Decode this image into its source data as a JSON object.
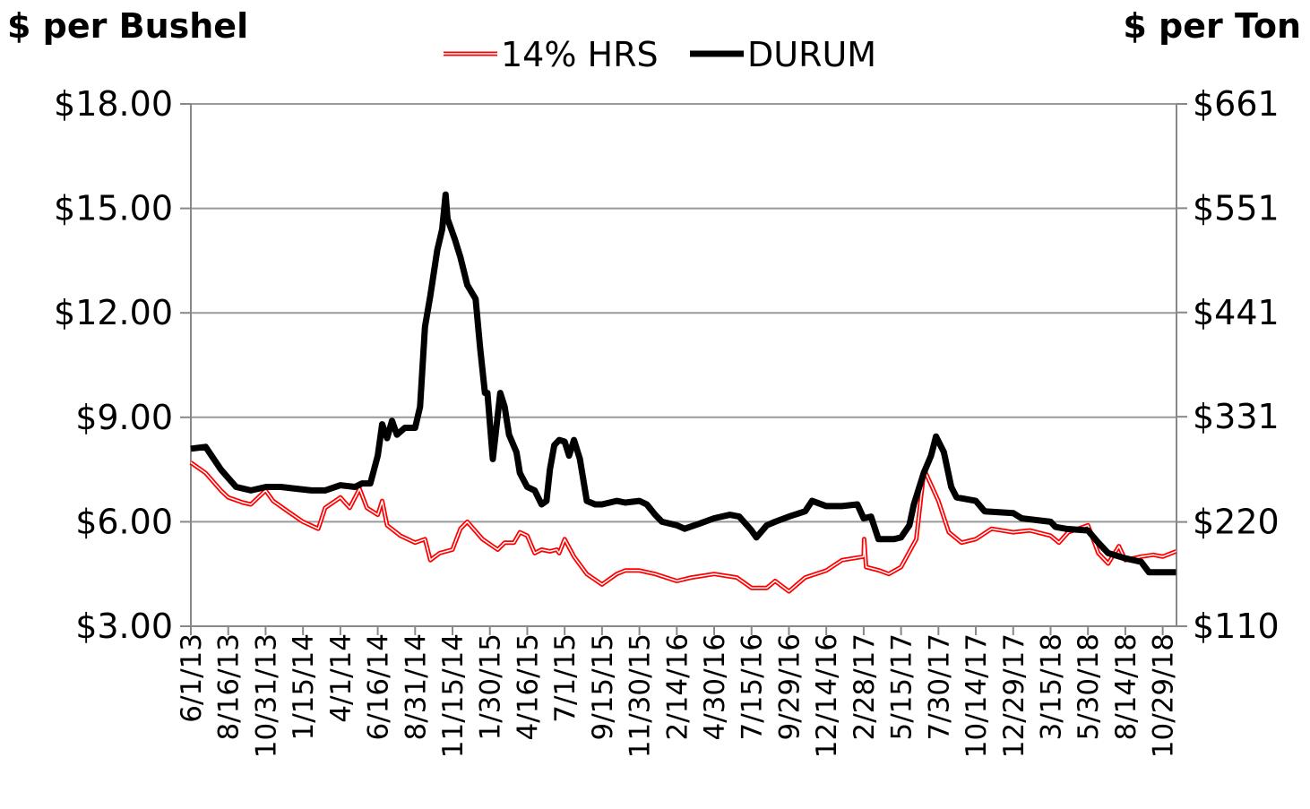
{
  "chart_data": {
    "type": "line",
    "y_label": "$ per Bushel",
    "y2_label": "$ per Ton",
    "xlim": [
      "6/1/13",
      "11/26/18"
    ],
    "xticks": [
      "6/1/13",
      "8/16/13",
      "10/31/13",
      "1/15/14",
      "4/1/14",
      "6/16/14",
      "8/31/14",
      "11/15/14",
      "1/30/15",
      "4/16/15",
      "7/1/15",
      "9/15/15",
      "11/30/15",
      "2/14/16",
      "4/30/16",
      "7/15/16",
      "9/29/16",
      "12/14/16",
      "2/28/17",
      "5/15/17",
      "7/30/17",
      "10/14/17",
      "12/29/17",
      "3/15/18",
      "5/30/18",
      "8/14/18",
      "10/29/18"
    ],
    "ylim": [
      3,
      18
    ],
    "yticks": [
      {
        "value": 3,
        "label": "$3.00"
      },
      {
        "value": 6,
        "label": "$6.00"
      },
      {
        "value": 9,
        "label": "$9.00"
      },
      {
        "value": 12,
        "label": "$12.00"
      },
      {
        "value": 15,
        "label": "$15.00"
      },
      {
        "value": 18,
        "label": "$18.00"
      }
    ],
    "y2lim": [
      110,
      661
    ],
    "y2ticks": [
      {
        "value": 110,
        "label": "$110"
      },
      {
        "value": 220,
        "label": "$220"
      },
      {
        "value": 331,
        "label": "$331"
      },
      {
        "value": 441,
        "label": "$441"
      },
      {
        "value": 551,
        "label": "$551"
      },
      {
        "value": 661,
        "label": "$661"
      }
    ],
    "grid": true,
    "legend": "top",
    "series": [
      {
        "name": "14% HRS",
        "color": "#ff0000",
        "line_style": "double",
        "x": [
          "6/1/13",
          "7/1/13",
          "8/1/13",
          "8/16/13",
          "9/15/13",
          "10/1/13",
          "10/31/13",
          "11/15/13",
          "12/15/13",
          "1/15/14",
          "2/15/14",
          "3/1/14",
          "4/1/14",
          "4/20/14",
          "5/10/14",
          "5/25/14",
          "6/16/14",
          "6/25/14",
          "7/5/14",
          "8/1/14",
          "8/31/14",
          "9/20/14",
          "10/1/14",
          "10/20/14",
          "11/15/14",
          "12/1/14",
          "12/15/14",
          "1/15/15",
          "2/15/15",
          "3/1/15",
          "3/20/15",
          "4/1/15",
          "4/16/15",
          "5/1/15",
          "5/15/15",
          "6/1/15",
          "6/15/15",
          "6/20/15",
          "7/1/15",
          "7/20/15",
          "8/15/15",
          "9/15/15",
          "10/15/15",
          "11/1/15",
          "11/30/15",
          "1/1/16",
          "2/14/16",
          "3/15/16",
          "4/30/16",
          "6/15/16",
          "7/15/16",
          "8/15/16",
          "9/1/16",
          "9/29/16",
          "11/1/16",
          "12/14/16",
          "1/15/17",
          "2/28/17",
          "3/1/17",
          "3/5/17",
          "4/1/17",
          "4/20/17",
          "5/15/17",
          "6/15/17",
          "7/1/17",
          "7/30/17",
          "8/20/17",
          "9/15/17",
          "10/14/17",
          "11/15/17",
          "12/29/17",
          "2/1/18",
          "3/15/18",
          "4/1/18",
          "4/20/18",
          "5/30/18",
          "6/20/18",
          "7/10/18",
          "8/1/18",
          "8/14/18",
          "9/15/18",
          "10/10/18",
          "10/29/18",
          "11/25/18"
        ],
        "values": [
          7.7,
          7.4,
          6.9,
          6.7,
          6.55,
          6.5,
          6.9,
          6.6,
          6.3,
          6.0,
          5.8,
          6.4,
          6.7,
          6.4,
          6.95,
          6.4,
          6.2,
          6.6,
          5.9,
          5.6,
          5.4,
          5.5,
          4.9,
          5.1,
          5.2,
          5.8,
          6.0,
          5.5,
          5.2,
          5.4,
          5.4,
          5.7,
          5.6,
          5.1,
          5.2,
          5.15,
          5.2,
          5.1,
          5.5,
          5.0,
          4.5,
          4.2,
          4.5,
          4.6,
          4.6,
          4.5,
          4.3,
          4.4,
          4.5,
          4.4,
          4.1,
          4.1,
          4.3,
          4.0,
          4.4,
          4.6,
          4.9,
          5.0,
          5.5,
          4.7,
          4.6,
          4.5,
          4.7,
          5.5,
          7.5,
          6.6,
          5.7,
          5.4,
          5.5,
          5.8,
          5.7,
          5.75,
          5.6,
          5.4,
          5.7,
          5.9,
          5.1,
          4.8,
          5.3,
          4.9,
          5.0,
          5.05,
          5.0,
          5.15
        ]
      },
      {
        "name": "DURUM",
        "color": "#000000",
        "line_style": "solid",
        "x": [
          "6/1/13",
          "7/1/13",
          "8/1/13",
          "9/1/13",
          "10/1/13",
          "11/1/13",
          "12/1/13",
          "1/1/14",
          "2/1/14",
          "3/1/14",
          "4/1/14",
          "5/1/14",
          "5/15/14",
          "6/1/14",
          "6/16/14",
          "6/25/14",
          "7/5/14",
          "7/15/14",
          "7/25/14",
          "8/10/14",
          "8/31/14",
          "9/10/14",
          "9/20/14",
          "10/1/14",
          "10/15/14",
          "10/25/14",
          "11/1/14",
          "11/5/14",
          "11/20/14",
          "12/1/14",
          "12/15/14",
          "1/1/15",
          "1/10/15",
          "1/20/15",
          "1/25/15",
          "2/5/15",
          "2/20/15",
          "3/1/15",
          "3/10/15",
          "3/25/15",
          "4/1/15",
          "4/16/15",
          "5/1/15",
          "5/15/15",
          "5/25/15",
          "6/1/15",
          "6/10/15",
          "6/20/15",
          "7/1/15",
          "7/10/15",
          "7/20/15",
          "8/1/15",
          "8/15/15",
          "9/1/15",
          "9/15/15",
          "10/15/15",
          "11/1/15",
          "11/30/15",
          "12/15/15",
          "1/1/16",
          "1/15/16",
          "2/14/16",
          "3/1/16",
          "4/1/16",
          "4/30/16",
          "6/1/16",
          "6/20/16",
          "7/15/16",
          "7/25/16",
          "8/15/16",
          "9/1/16",
          "9/29/16",
          "11/1/16",
          "11/15/16",
          "12/14/16",
          "1/15/17",
          "2/15/17",
          "2/28/17",
          "3/15/17",
          "3/30/17",
          "4/30/17",
          "5/15/17",
          "6/1/17",
          "6/10/17",
          "6/30/17",
          "7/15/17",
          "7/25/17",
          "8/10/17",
          "8/25/17",
          "9/5/17",
          "10/14/17",
          "11/1/17",
          "12/29/17",
          "1/15/18",
          "3/15/18",
          "3/25/18",
          "4/15/18",
          "5/30/18",
          "6/20/18",
          "7/10/18",
          "8/14/18",
          "9/15/18",
          "10/1/18",
          "10/29/18",
          "11/25/18"
        ],
        "values": [
          8.1,
          8.15,
          7.5,
          7.0,
          6.9,
          7.0,
          7.0,
          6.95,
          6.9,
          6.9,
          7.05,
          7.0,
          7.1,
          7.1,
          7.9,
          8.8,
          8.4,
          8.9,
          8.5,
          8.7,
          8.7,
          9.3,
          11.6,
          12.5,
          13.8,
          14.4,
          15.4,
          14.7,
          14.1,
          13.6,
          12.8,
          12.4,
          11.0,
          9.7,
          9.7,
          7.8,
          9.7,
          9.3,
          8.5,
          8.0,
          7.4,
          7.0,
          6.9,
          6.5,
          6.6,
          7.5,
          8.2,
          8.35,
          8.3,
          7.9,
          8.35,
          7.8,
          6.6,
          6.5,
          6.5,
          6.6,
          6.55,
          6.6,
          6.5,
          6.2,
          6.0,
          5.9,
          5.8,
          5.95,
          6.1,
          6.2,
          6.15,
          5.75,
          5.55,
          5.9,
          6.0,
          6.15,
          6.3,
          6.6,
          6.45,
          6.45,
          6.5,
          6.1,
          6.15,
          5.5,
          5.5,
          5.55,
          5.9,
          6.5,
          7.4,
          7.9,
          8.45,
          8.0,
          7.0,
          6.7,
          6.6,
          6.3,
          6.25,
          6.1,
          6.0,
          5.85,
          5.8,
          5.75,
          5.4,
          5.1,
          4.95,
          4.85,
          4.55,
          4.55,
          4.55
        ]
      }
    ]
  }
}
